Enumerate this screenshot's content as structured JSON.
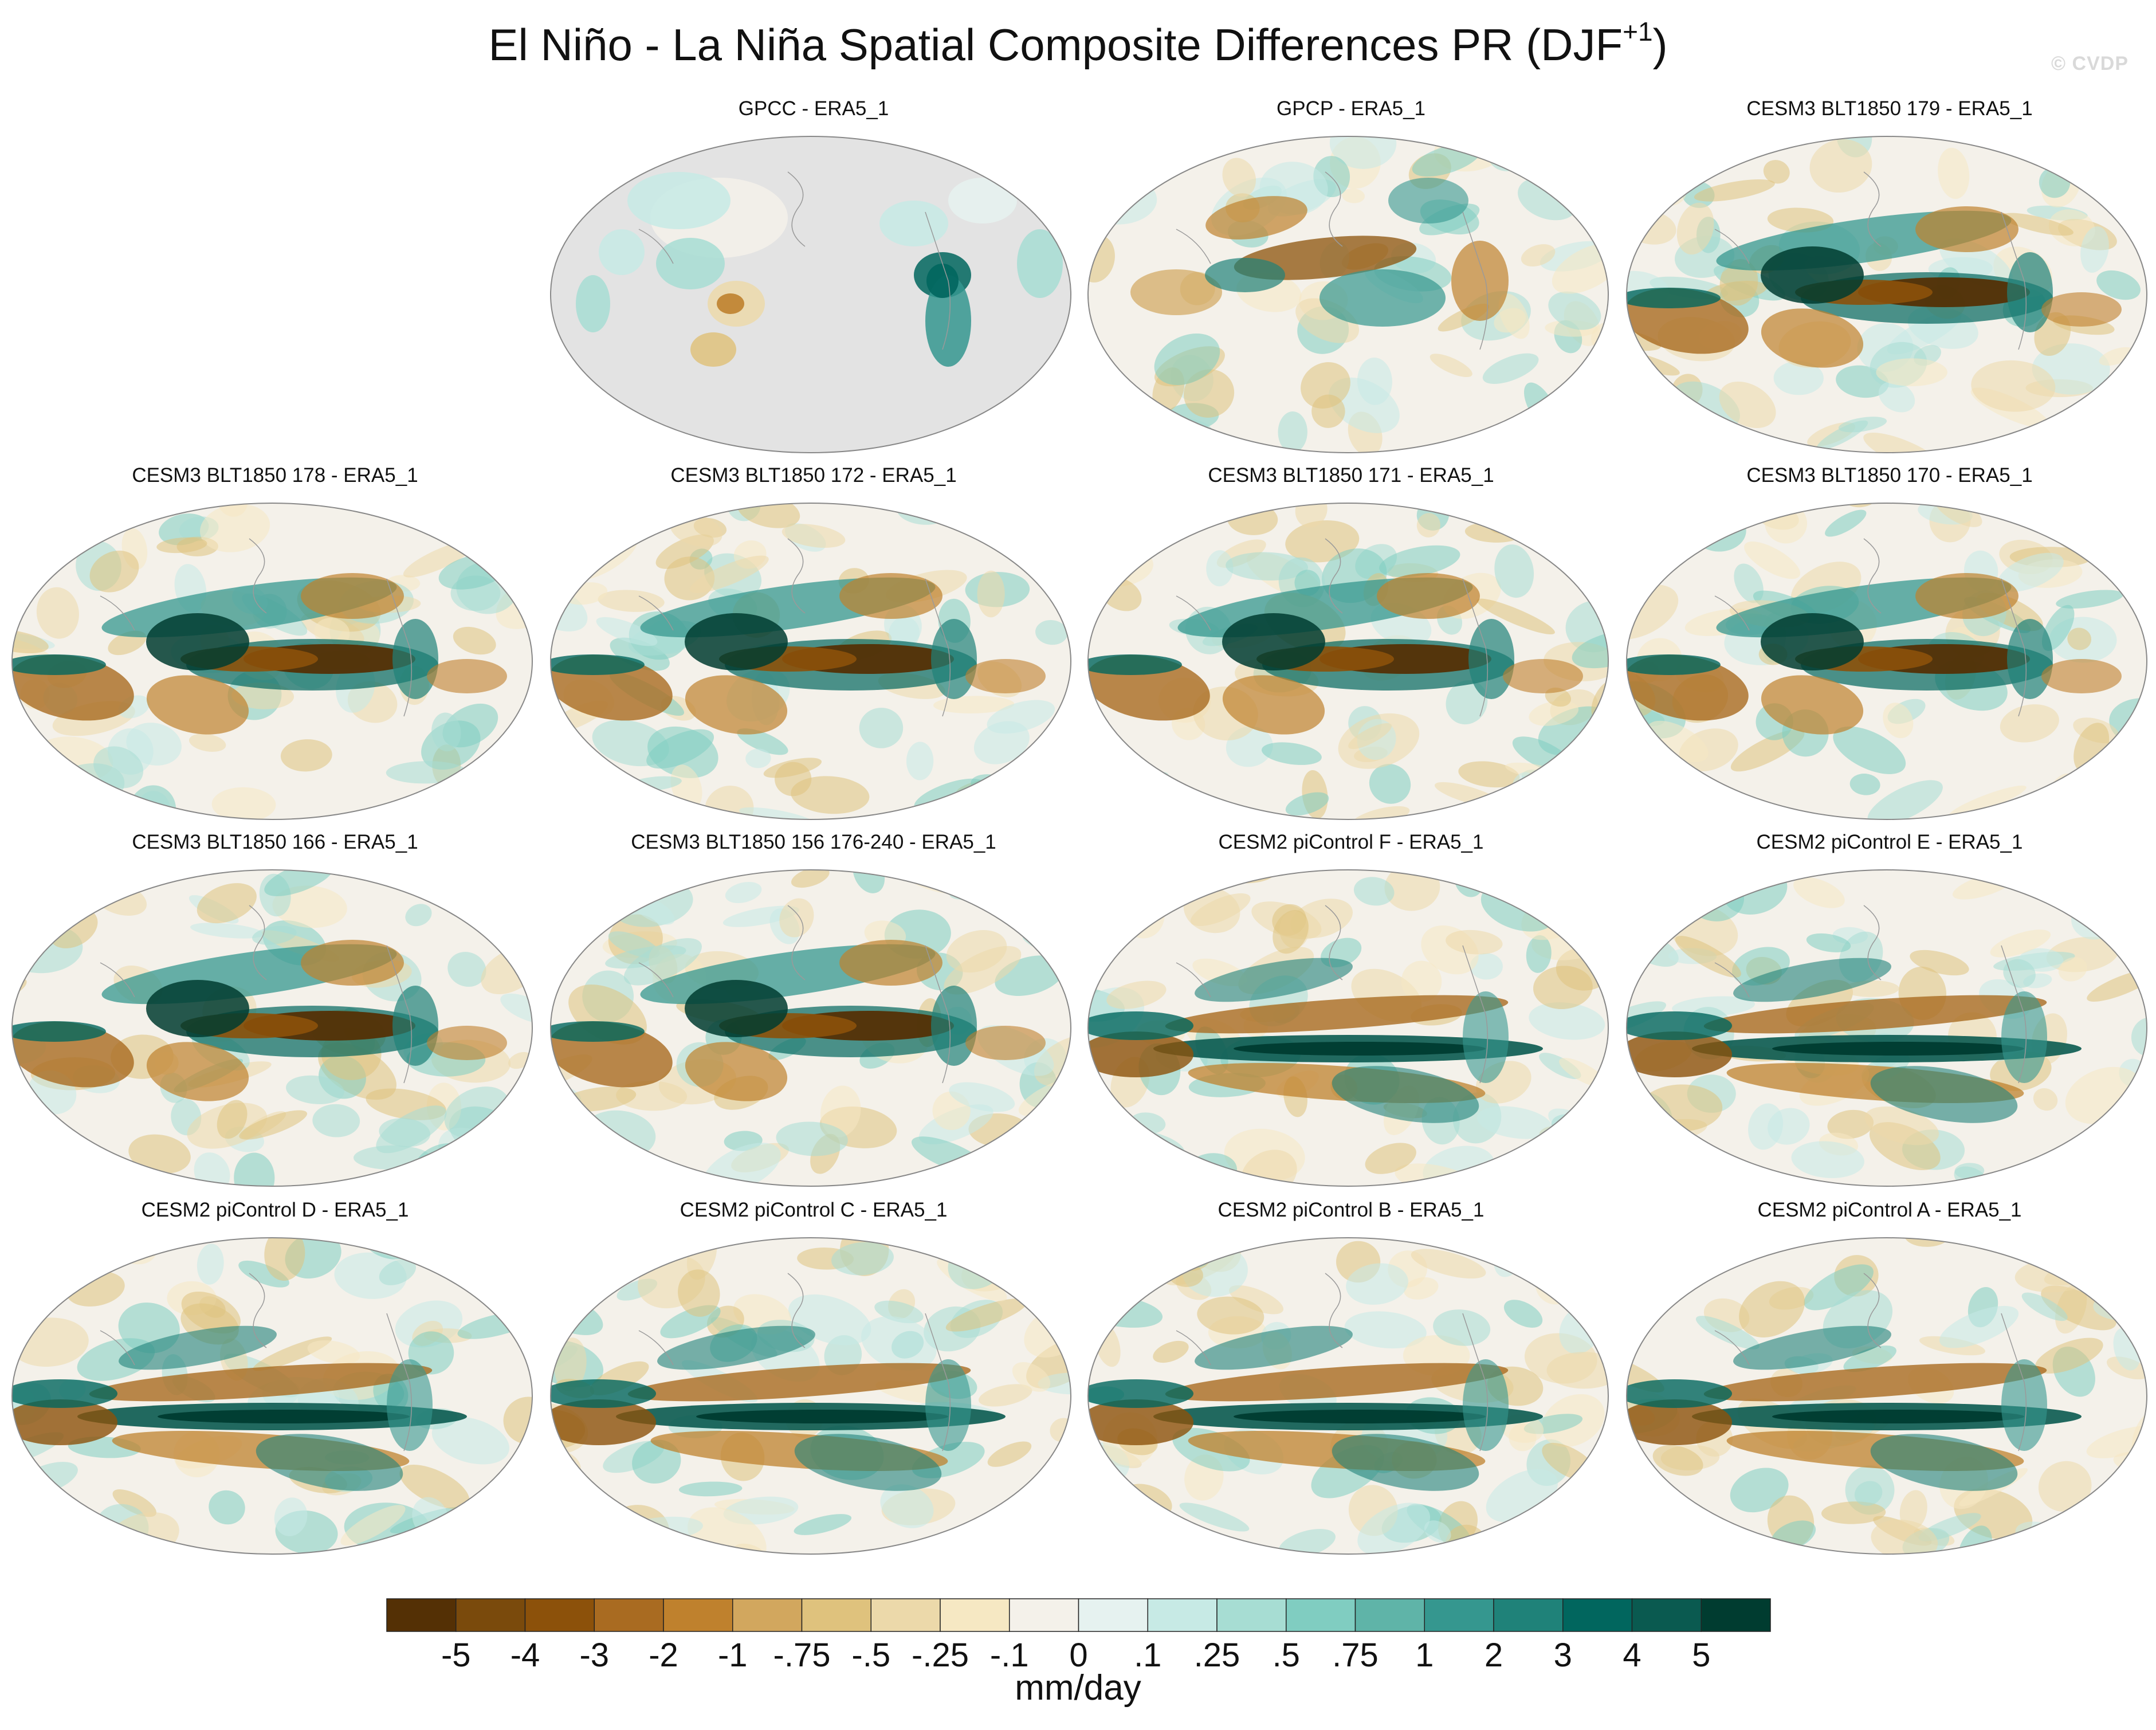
{
  "title": "El Niño - La Niña Spatial Composite Differences PR (DJF",
  "title_sup": "+1",
  "title_close": ")",
  "watermark": "© CVDP",
  "chart_data": {
    "type": "heatmap",
    "projection": "Robinson-like global map",
    "variable": "PR",
    "season": "DJF+1",
    "units": "mm/day",
    "contour_levels": [
      "-5",
      "-4",
      "-3",
      "-2",
      "-1",
      "-.75",
      "-.5",
      "-.25",
      "-.1",
      "0",
      ".1",
      ".25",
      ".5",
      ".75",
      "1",
      "2",
      "3",
      "4",
      "5"
    ],
    "colors": [
      "#543005",
      "#7a4a0c",
      "#8c510a",
      "#a96b21",
      "#bf812d",
      "#d2a75e",
      "#dfc27d",
      "#ecd9aa",
      "#f6e8c3",
      "#f4f1ea",
      "#e6f2f0",
      "#c7eae5",
      "#a7ddd3",
      "#80cdc1",
      "#5fb4a8",
      "#35978f",
      "#1f8279",
      "#01665e",
      "#0a5a50",
      "#003c30"
    ],
    "panels": [
      {
        "name": "GPCC - ERA5_1",
        "pattern": "land"
      },
      {
        "name": "GPCP - ERA5_1",
        "pattern": "obs"
      },
      {
        "name": "CESM3 BLT1850 179 - ERA5_1",
        "pattern": "cesm3"
      },
      {
        "name": "CESM3 BLT1850 178 - ERA5_1",
        "pattern": "cesm3"
      },
      {
        "name": "CESM3 BLT1850 172 - ERA5_1",
        "pattern": "cesm3"
      },
      {
        "name": "CESM3 BLT1850 171 - ERA5_1",
        "pattern": "cesm3"
      },
      {
        "name": "CESM3 BLT1850 170 - ERA5_1",
        "pattern": "cesm3"
      },
      {
        "name": "CESM3 BLT1850 166 - ERA5_1",
        "pattern": "cesm3"
      },
      {
        "name": "CESM3 BLT1850 156 176-240 - ERA5_1",
        "pattern": "cesm3"
      },
      {
        "name": "CESM2 piControl F - ERA5_1",
        "pattern": "cesm2"
      },
      {
        "name": "CESM2 piControl E - ERA5_1",
        "pattern": "cesm2"
      },
      {
        "name": "CESM2 piControl D - ERA5_1",
        "pattern": "cesm2"
      },
      {
        "name": "CESM2 piControl C - ERA5_1",
        "pattern": "cesm2"
      },
      {
        "name": "CESM2 piControl B - ERA5_1",
        "pattern": "cesm2"
      },
      {
        "name": "CESM2 piControl A - ERA5_1",
        "pattern": "cesm2"
      }
    ]
  }
}
